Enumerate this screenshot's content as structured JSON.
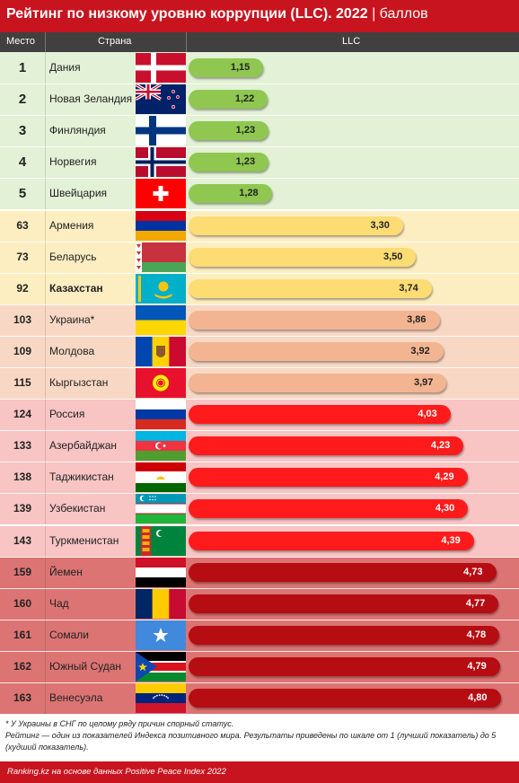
{
  "title": {
    "main": "Рейтинг по низкому уровню коррупции (LLC). 2022",
    "separator": " | ",
    "unit": "баллов"
  },
  "header": {
    "rank": "Место",
    "country": "Страна",
    "value": "LLC"
  },
  "colors": {
    "brand": "#c8141e",
    "header_bg": "#404040"
  },
  "chart_data": {
    "type": "bar",
    "orientation": "horizontal",
    "xlim": [
      0,
      5
    ],
    "rows": [
      {
        "rank": "1",
        "country": "Дания",
        "value": 1.15,
        "label": "1,15",
        "group": "g1",
        "flag": "denmark"
      },
      {
        "rank": "2",
        "country": "Новая Зеландия",
        "value": 1.22,
        "label": "1,22",
        "group": "g1",
        "flag": "new-zealand"
      },
      {
        "rank": "3",
        "country": "Финляндия",
        "value": 1.23,
        "label": "1,23",
        "group": "g1",
        "flag": "finland"
      },
      {
        "rank": "4",
        "country": "Норвегия",
        "value": 1.23,
        "label": "1,23",
        "group": "g1",
        "flag": "norway"
      },
      {
        "rank": "5",
        "country": "Швейцария",
        "value": 1.28,
        "label": "1,28",
        "group": "g1",
        "flag": "switzerland"
      },
      {
        "rank": "63",
        "country": "Армения",
        "value": 3.3,
        "label": "3,30",
        "group": "g2",
        "flag": "armenia"
      },
      {
        "rank": "73",
        "country": "Беларусь",
        "value": 3.5,
        "label": "3,50",
        "group": "g2",
        "flag": "belarus"
      },
      {
        "rank": "92",
        "country": "Казахстан",
        "value": 3.74,
        "label": "3,74",
        "group": "g2",
        "flag": "kazakhstan",
        "bold": true
      },
      {
        "rank": "103",
        "country": "Украина*",
        "value": 3.86,
        "label": "3,86",
        "group": "g3",
        "flag": "ukraine"
      },
      {
        "rank": "109",
        "country": "Молдова",
        "value": 3.92,
        "label": "3,92",
        "group": "g3",
        "flag": "moldova"
      },
      {
        "rank": "115",
        "country": "Кыргызстан",
        "value": 3.97,
        "label": "3,97",
        "group": "g3",
        "flag": "kyrgyzstan"
      },
      {
        "rank": "124",
        "country": "Россия",
        "value": 4.03,
        "label": "4,03",
        "group": "g4",
        "flag": "russia"
      },
      {
        "rank": "133",
        "country": "Азербайджан",
        "value": 4.23,
        "label": "4,23",
        "group": "g4",
        "flag": "azerbaijan"
      },
      {
        "rank": "138",
        "country": "Таджикистан",
        "value": 4.29,
        "label": "4,29",
        "group": "g4",
        "flag": "tajikistan"
      },
      {
        "rank": "139",
        "country": "Узбекистан",
        "value": 4.3,
        "label": "4,30",
        "group": "g4",
        "flag": "uzbekistan"
      },
      {
        "rank": "143",
        "country": "Туркменистан",
        "value": 4.39,
        "label": "4,39",
        "group": "g4",
        "flag": "turkmenistan"
      },
      {
        "rank": "159",
        "country": "Йемен",
        "value": 4.73,
        "label": "4,73",
        "group": "g5",
        "flag": "yemen"
      },
      {
        "rank": "160",
        "country": "Чад",
        "value": 4.77,
        "label": "4,77",
        "group": "g5",
        "flag": "chad"
      },
      {
        "rank": "161",
        "country": "Сомали",
        "value": 4.78,
        "label": "4,78",
        "group": "g5",
        "flag": "somalia"
      },
      {
        "rank": "162",
        "country": "Южный Судан",
        "value": 4.79,
        "label": "4,79",
        "group": "g5",
        "flag": "south-sudan"
      },
      {
        "rank": "163",
        "country": "Венесуэла",
        "value": 4.8,
        "label": "4,80",
        "group": "g5",
        "flag": "venezuela"
      }
    ],
    "groups": {
      "g1": {
        "row_bg": "#e3f1d6",
        "bar": "#8fc750",
        "text": "#222222"
      },
      "g2": {
        "row_bg": "#fdeec2",
        "bar": "#fddc74",
        "text": "#222222"
      },
      "g3": {
        "row_bg": "#f8d8c4",
        "bar": "#f3b591",
        "text": "#222222"
      },
      "g4": {
        "row_bg": "#f8c4c4",
        "bar": "#ff1b1b",
        "text": "#ffffff"
      },
      "g5": {
        "row_bg": "#dc7474",
        "bar": "#b50d12",
        "text": "#ffffff"
      }
    }
  },
  "notes": [
    "* У Украины в СНГ по целому ряду причин спорный статус.",
    "Рейтинг — один из показателей Индекса позитивного мира. Результаты приведены по шкале от 1 (лучший показатель) до 5 (худший показатель)."
  ],
  "footer": "Ranking.kz на основе данных Positive Peace Index 2022"
}
